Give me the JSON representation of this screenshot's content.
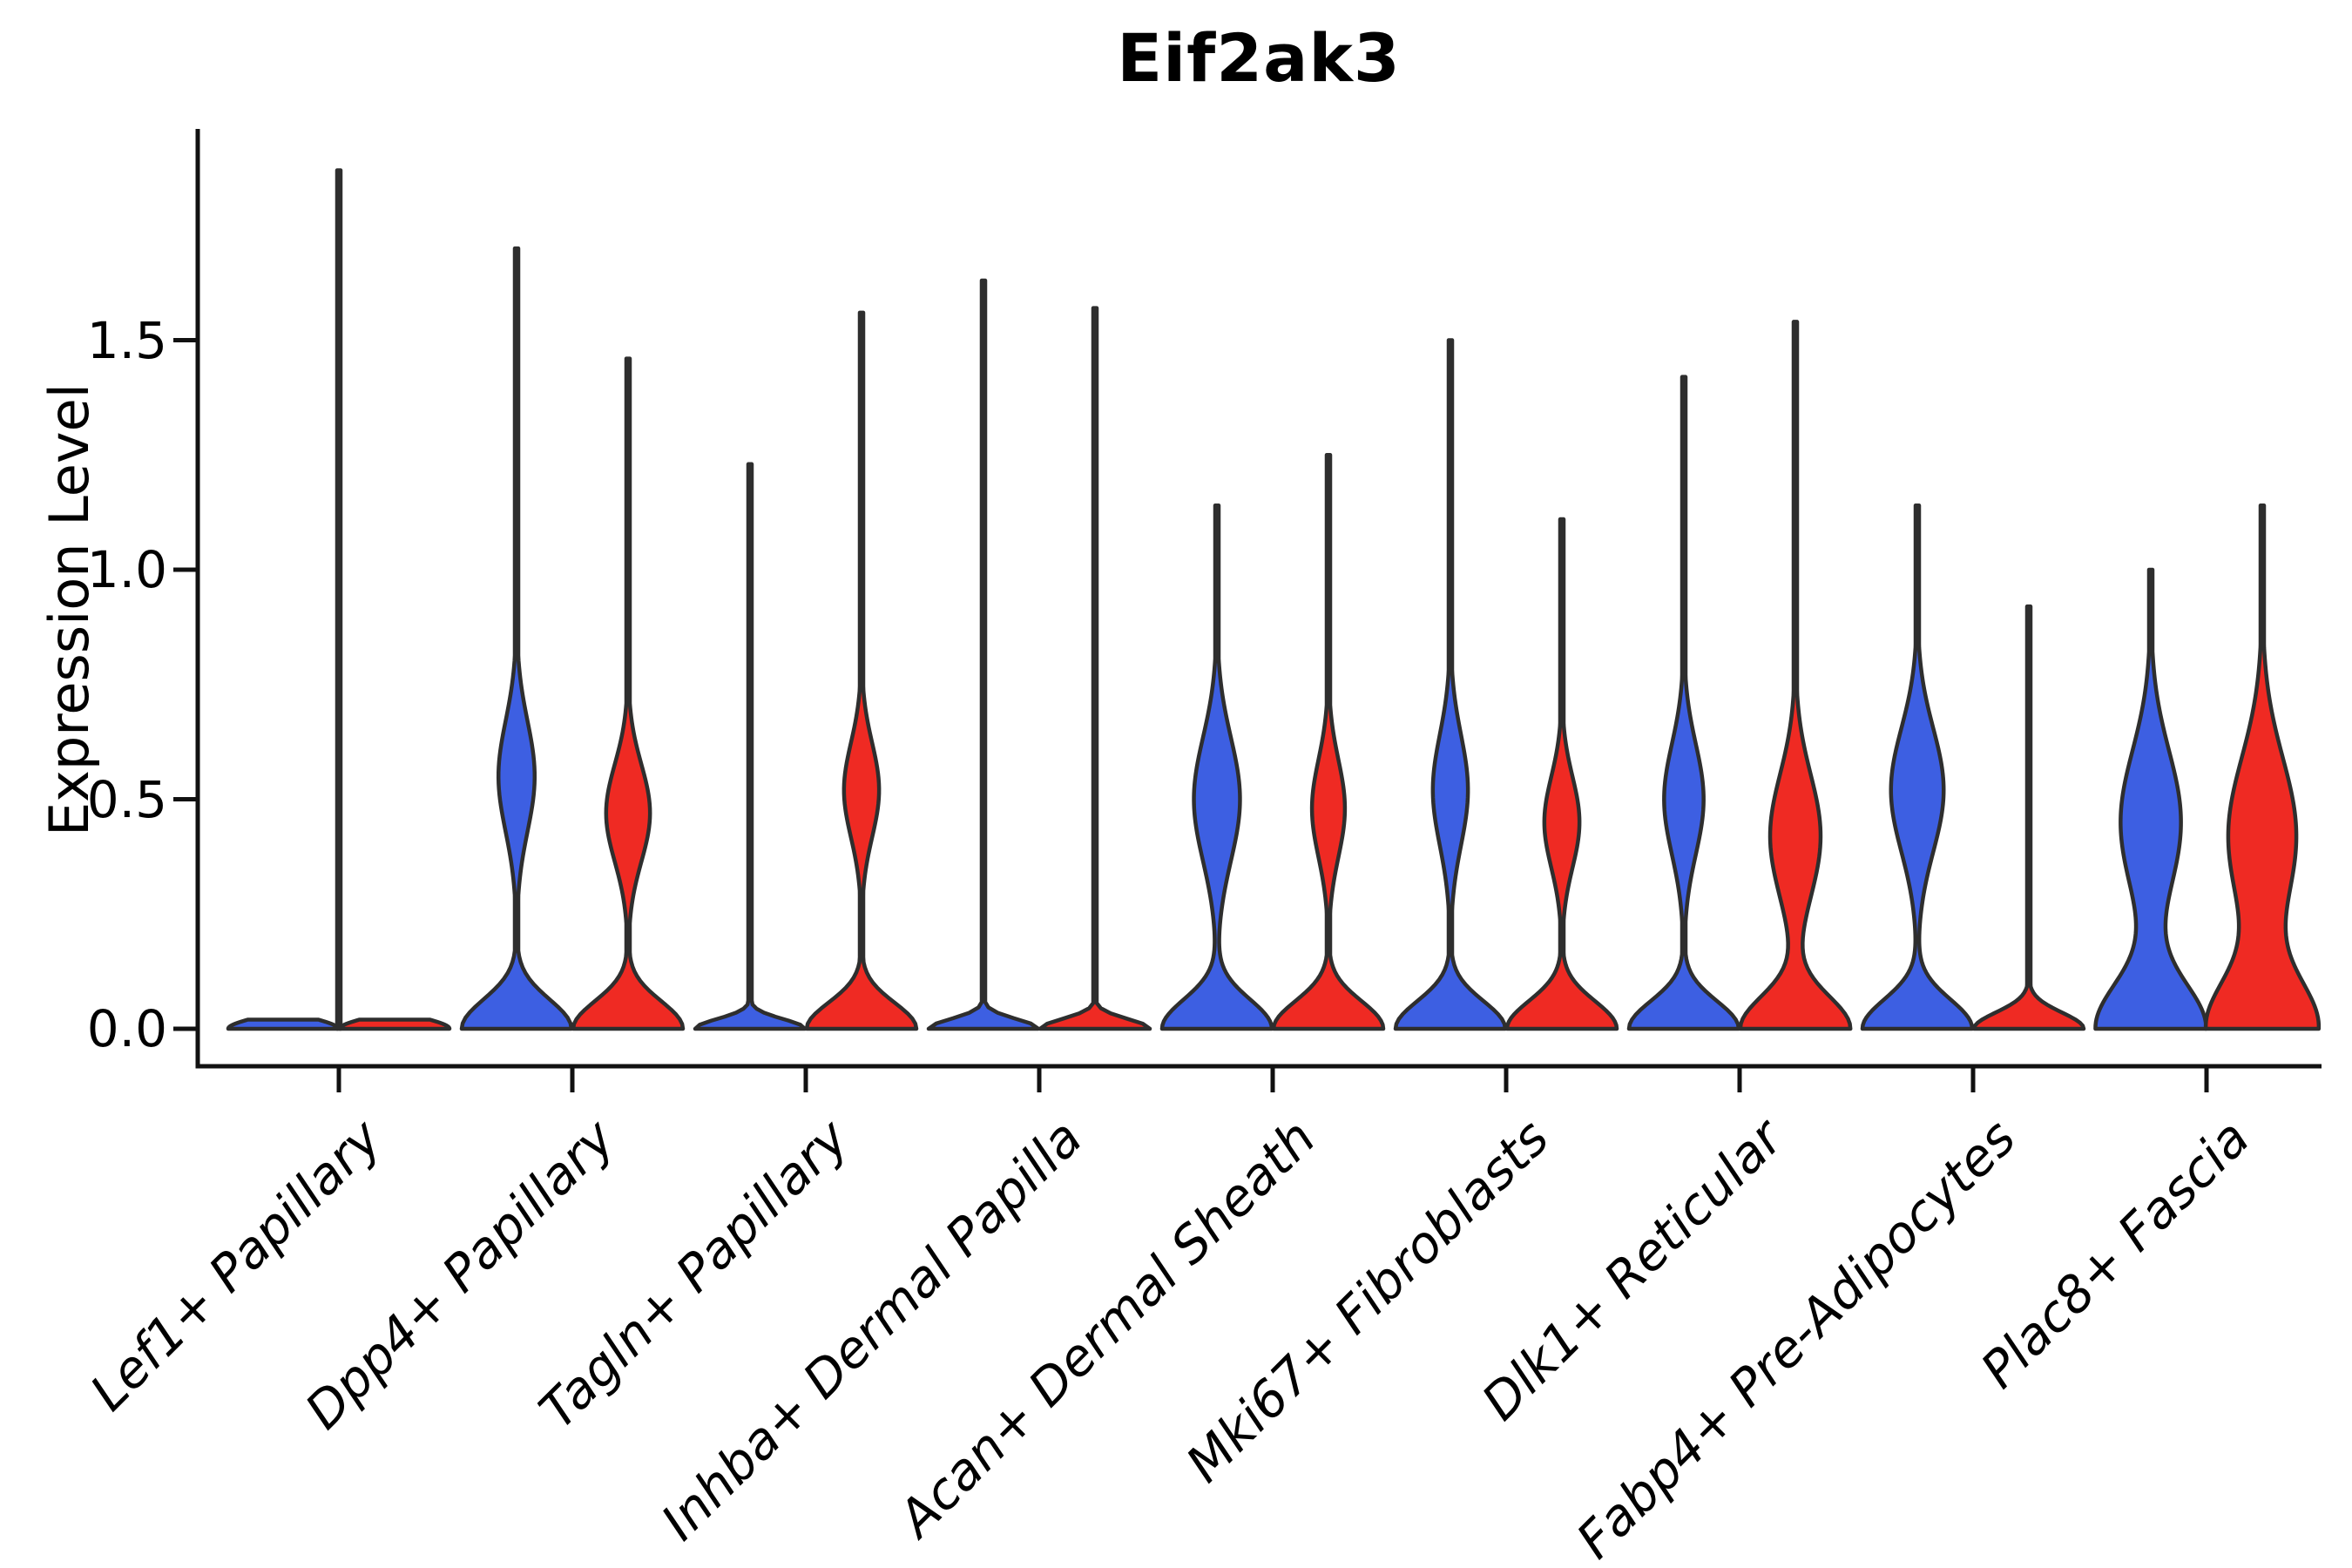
{
  "chart_data": {
    "type": "violin",
    "title": "Eif2ak3",
    "ylabel": "Expression Level",
    "xlabel": "",
    "ytick_labels": [
      "0.0",
      "0.5",
      "1.0",
      "1.5"
    ],
    "ytick_values": [
      0.0,
      0.5,
      1.0,
      1.5
    ],
    "ylim": [
      -0.08,
      1.96
    ],
    "grid": false,
    "legend": "none",
    "x_tick_rotation": 45,
    "colors": {
      "blue": "#3D5FE2",
      "red": "#EF2A23",
      "dark": "#2E2E2E"
    },
    "categories": [
      "Lef1+ Papillary",
      "Dpp4+ Papillary",
      "Tagln+ Papillary",
      "Inhba+ Dermal Papilla",
      "Acan+ Dermal Sheath",
      "Mki67+ Fibroblasts",
      "Dlk1+ Reticular",
      "Fabp4+ Pre-Adipocytes",
      "Plac8+ Fascia"
    ],
    "groups": [
      {
        "label": "Lef1+ Papillary",
        "violins": [
          {
            "pos": "left",
            "color": "blue",
            "flat": true,
            "base_sigma": 0.03,
            "bulge_amp": 0,
            "bulge_center": 0,
            "bulge_sigma": 1,
            "tail_top": 0.02
          },
          {
            "pos": "right",
            "color": "red",
            "flat": true,
            "base_sigma": 0.03,
            "bulge_amp": 0,
            "bulge_center": 0,
            "bulge_sigma": 1,
            "tail_top": 0.02
          },
          {
            "pos": "center",
            "color": "dark",
            "spike": true,
            "base_sigma": 0.001,
            "bulge_amp": 0,
            "bulge_center": 0,
            "bulge_sigma": 1,
            "tail_top": 1.87
          }
        ]
      },
      {
        "label": "Dpp4+ Papillary",
        "violins": [
          {
            "pos": "left",
            "color": "blue",
            "base_sigma": 0.09,
            "bulge_amp": 0.33,
            "bulge_center": 0.55,
            "bulge_sigma": 0.17,
            "tail_top": 1.7
          },
          {
            "pos": "right",
            "color": "red",
            "base_sigma": 0.085,
            "bulge_amp": 0.4,
            "bulge_center": 0.47,
            "bulge_sigma": 0.15,
            "tail_top": 1.46
          }
        ]
      },
      {
        "label": "Tagln+ Papillary",
        "violins": [
          {
            "pos": "left",
            "color": "blue",
            "flat": true,
            "base_sigma": 0.03,
            "bulge_amp": 0,
            "bulge_center": 0,
            "bulge_sigma": 1,
            "tail_top": 1.23
          },
          {
            "pos": "right",
            "color": "red",
            "base_sigma": 0.08,
            "bulge_amp": 0.32,
            "bulge_center": 0.52,
            "bulge_sigma": 0.145,
            "tail_top": 1.56
          }
        ]
      },
      {
        "label": "Inhba+ Dermal Papilla",
        "violins": [
          {
            "pos": "left",
            "color": "blue",
            "flat": true,
            "base_sigma": 0.03,
            "bulge_amp": 0,
            "bulge_center": 0,
            "bulge_sigma": 1,
            "tail_top": 1.63
          },
          {
            "pos": "right",
            "color": "red",
            "flat": true,
            "base_sigma": 0.03,
            "bulge_amp": 0,
            "bulge_center": 0,
            "bulge_sigma": 1,
            "tail_top": 1.57
          }
        ]
      },
      {
        "label": "Acan+ Dermal Sheath",
        "violins": [
          {
            "pos": "left",
            "color": "blue",
            "base_sigma": 0.09,
            "bulge_amp": 0.42,
            "bulge_center": 0.5,
            "bulge_sigma": 0.19,
            "tail_top": 1.14
          },
          {
            "pos": "right",
            "color": "red",
            "base_sigma": 0.085,
            "bulge_amp": 0.3,
            "bulge_center": 0.48,
            "bulge_sigma": 0.15,
            "tail_top": 1.25
          }
        ]
      },
      {
        "label": "Mki67+ Fibroblasts",
        "violins": [
          {
            "pos": "left",
            "color": "blue",
            "base_sigma": 0.085,
            "bulge_amp": 0.32,
            "bulge_center": 0.52,
            "bulge_sigma": 0.17,
            "tail_top": 1.5
          },
          {
            "pos": "right",
            "color": "red",
            "base_sigma": 0.085,
            "bulge_amp": 0.32,
            "bulge_center": 0.45,
            "bulge_sigma": 0.14,
            "tail_top": 1.11
          }
        ]
      },
      {
        "label": "Dlk1+ Reticular",
        "violins": [
          {
            "pos": "left",
            "color": "blue",
            "base_sigma": 0.085,
            "bulge_amp": 0.36,
            "bulge_center": 0.5,
            "bulge_sigma": 0.17,
            "tail_top": 1.42
          },
          {
            "pos": "right",
            "color": "red",
            "base_sigma": 0.1,
            "bulge_amp": 0.46,
            "bulge_center": 0.42,
            "bulge_sigma": 0.19,
            "tail_top": 1.54
          }
        ]
      },
      {
        "label": "Fabp4+ Pre-Adipocytes",
        "violins": [
          {
            "pos": "left",
            "color": "blue",
            "base_sigma": 0.09,
            "bulge_amp": 0.48,
            "bulge_center": 0.52,
            "bulge_sigma": 0.19,
            "tail_top": 1.14
          },
          {
            "pos": "right",
            "color": "red",
            "flat": true,
            "base_sigma": 0.05,
            "bulge_amp": 0,
            "bulge_center": 0,
            "bulge_sigma": 1,
            "tail_top": 0.92
          }
        ]
      },
      {
        "label": "Plac8+ Fascia",
        "violins": [
          {
            "pos": "left",
            "color": "blue",
            "base_sigma": 0.14,
            "bulge_amp": 0.55,
            "bulge_center": 0.45,
            "bulge_sigma": 0.22,
            "tail_top": 1.0
          },
          {
            "pos": "right",
            "color": "red",
            "base_sigma": 0.15,
            "bulge_amp": 0.62,
            "bulge_center": 0.42,
            "bulge_sigma": 0.24,
            "tail_top": 1.14
          }
        ]
      }
    ]
  }
}
